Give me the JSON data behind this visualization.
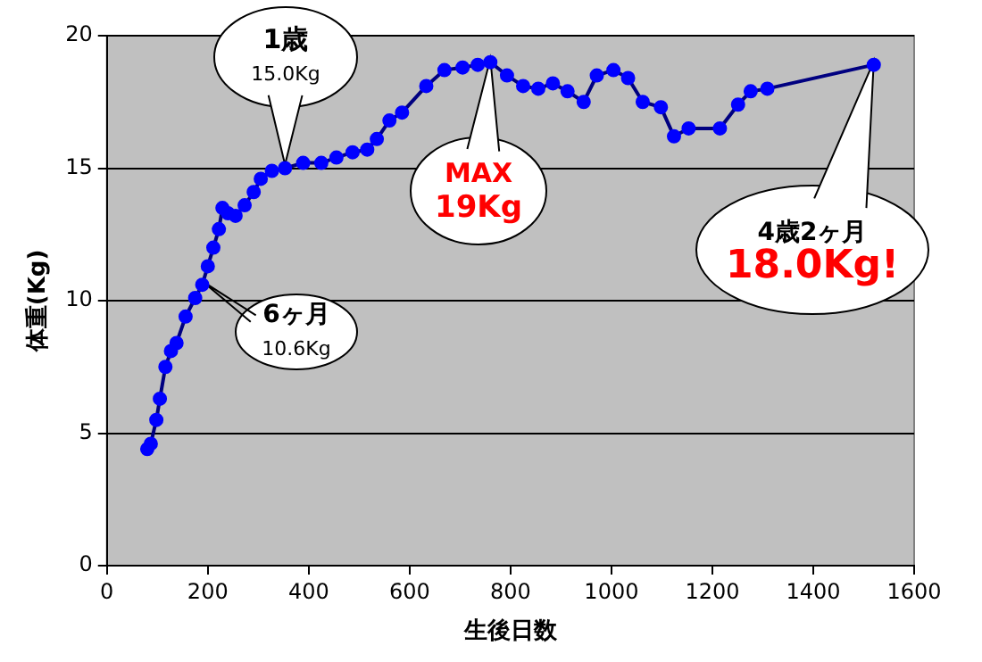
{
  "chart_data": {
    "type": "line",
    "xlabel": "生後日数",
    "ylabel": "体重(Kg)",
    "xlim": [
      0,
      1600
    ],
    "xticks": [
      0,
      200,
      400,
      600,
      800,
      1000,
      1200,
      1400,
      1600
    ],
    "ylim": [
      0,
      20
    ],
    "yticks": [
      0,
      5,
      10,
      15,
      20
    ],
    "grid": "y",
    "marker": "circle",
    "line_style": "solid",
    "legend": false,
    "series": [
      {
        "color": "#0000ff",
        "x": [
          80,
          87,
          98,
          105,
          116,
          127,
          138,
          156,
          175,
          189,
          200,
          211,
          222,
          229,
          240,
          255,
          273,
          291,
          305,
          327,
          353,
          389,
          425,
          455,
          487,
          516,
          535,
          560,
          585,
          633,
          669,
          705,
          735,
          760,
          793,
          825,
          855,
          884,
          913,
          945,
          971,
          1004,
          1033,
          1062,
          1098,
          1124,
          1153,
          1215,
          1251,
          1276,
          1309,
          1520
        ],
        "values": [
          4.4,
          4.6,
          5.5,
          6.3,
          7.5,
          8.1,
          8.4,
          9.4,
          10.1,
          10.6,
          11.3,
          12.0,
          12.7,
          13.5,
          13.3,
          13.2,
          13.6,
          14.1,
          14.6,
          14.9,
          15.0,
          15.2,
          15.2,
          15.4,
          15.6,
          15.7,
          16.1,
          16.8,
          17.1,
          18.1,
          18.7,
          18.8,
          18.9,
          19.0,
          18.5,
          18.1,
          18.0,
          18.2,
          17.9,
          17.5,
          18.5,
          18.7,
          18.4,
          17.5,
          17.3,
          16.2,
          16.5,
          16.5,
          17.4,
          17.9,
          18.0,
          18.9
        ]
      }
    ],
    "annotations": [
      {
        "text": "1歳\n15.0Kg",
        "x": 353,
        "y": 15.0
      },
      {
        "text": "6ヶ月\n10.6Kg",
        "x": 189,
        "y": 10.6
      },
      {
        "text": "MAX\n19Kg",
        "x": 760,
        "y": 19.0
      },
      {
        "text": "4歳2ヶ月\n18.0Kg!",
        "x": 1520,
        "y": 18.9
      }
    ]
  }
}
